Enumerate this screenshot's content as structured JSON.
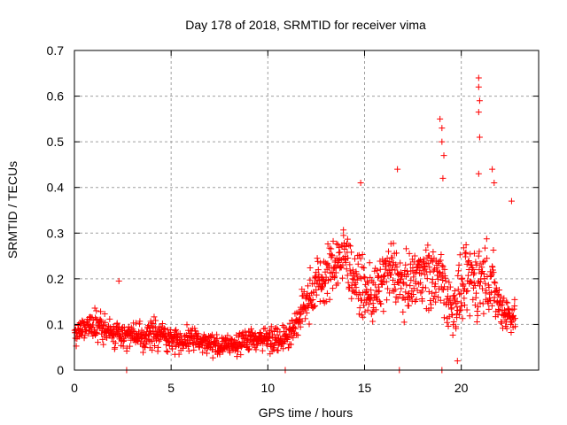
{
  "chart_data": {
    "type": "scatter",
    "title": "Day 178 of 2018, SRMTID for receiver vima",
    "xlabel": "GPS time / hours",
    "ylabel": "SRMTID / TECUs",
    "xlim": [
      0,
      24
    ],
    "ylim": [
      0,
      0.7
    ],
    "xticks": [
      0,
      5,
      10,
      15,
      20
    ],
    "xtick_labels": [
      "0",
      "5",
      "10",
      "15",
      "20"
    ],
    "yticks": [
      0,
      0.1,
      0.2,
      0.3,
      0.4,
      0.5,
      0.6,
      0.7
    ],
    "ytick_labels": [
      "0",
      "0.1",
      "0.2",
      "0.3",
      "0.4",
      "0.5",
      "0.6",
      "0.7"
    ],
    "grid": true,
    "legend": "none",
    "marker": "+",
    "series": [
      {
        "name": "SRMTID",
        "color": "#ff0000",
        "x_end": 22.8,
        "envelope_hours": [
          0,
          0.5,
          1,
          1.5,
          2,
          2.5,
          3,
          3.5,
          4,
          4.5,
          5,
          5.5,
          6,
          6.5,
          7,
          7.5,
          8,
          8.5,
          9,
          9.5,
          10,
          10.5,
          11,
          11.5,
          12,
          12.5,
          13,
          13.5,
          14,
          14.5,
          15,
          15.5,
          16,
          16.5,
          17,
          17.5,
          18,
          18.5,
          19,
          19.5,
          20,
          20.5,
          21,
          21.5,
          22,
          22.5,
          22.8
        ],
        "envelope_mean": [
          0.08,
          0.09,
          0.1,
          0.09,
          0.08,
          0.08,
          0.075,
          0.07,
          0.08,
          0.08,
          0.065,
          0.065,
          0.07,
          0.065,
          0.06,
          0.05,
          0.055,
          0.06,
          0.065,
          0.07,
          0.07,
          0.07,
          0.075,
          0.1,
          0.15,
          0.19,
          0.2,
          0.24,
          0.25,
          0.2,
          0.17,
          0.16,
          0.2,
          0.22,
          0.18,
          0.2,
          0.22,
          0.2,
          0.2,
          0.13,
          0.17,
          0.2,
          0.2,
          0.2,
          0.14,
          0.12,
          0.12
        ],
        "envelope_spread": [
          0.03,
          0.03,
          0.035,
          0.03,
          0.03,
          0.03,
          0.03,
          0.03,
          0.035,
          0.03,
          0.025,
          0.025,
          0.03,
          0.025,
          0.025,
          0.02,
          0.02,
          0.025,
          0.025,
          0.03,
          0.03,
          0.03,
          0.03,
          0.04,
          0.05,
          0.06,
          0.06,
          0.07,
          0.07,
          0.06,
          0.06,
          0.06,
          0.07,
          0.07,
          0.06,
          0.06,
          0.07,
          0.08,
          0.08,
          0.06,
          0.07,
          0.08,
          0.1,
          0.08,
          0.05,
          0.04,
          0.04
        ],
        "notable_points": [
          {
            "x": 2.3,
            "y": 0.195
          },
          {
            "x": 14.8,
            "y": 0.41
          },
          {
            "x": 16.7,
            "y": 0.44
          },
          {
            "x": 18.9,
            "y": 0.55
          },
          {
            "x": 19.0,
            "y": 0.53
          },
          {
            "x": 19.0,
            "y": 0.5
          },
          {
            "x": 19.1,
            "y": 0.47
          },
          {
            "x": 19.05,
            "y": 0.42
          },
          {
            "x": 20.9,
            "y": 0.64
          },
          {
            "x": 20.9,
            "y": 0.62
          },
          {
            "x": 20.95,
            "y": 0.59
          },
          {
            "x": 20.9,
            "y": 0.565
          },
          {
            "x": 20.95,
            "y": 0.51
          },
          {
            "x": 20.9,
            "y": 0.43
          },
          {
            "x": 21.6,
            "y": 0.44
          },
          {
            "x": 21.7,
            "y": 0.41
          },
          {
            "x": 22.6,
            "y": 0.37
          },
          {
            "x": 19.8,
            "y": 0.02
          },
          {
            "x": 2.7,
            "y": 0.0
          },
          {
            "x": 10.9,
            "y": 0.0
          },
          {
            "x": 16.8,
            "y": 0.0
          },
          {
            "x": 19.0,
            "y": 0.0
          }
        ]
      }
    ]
  }
}
